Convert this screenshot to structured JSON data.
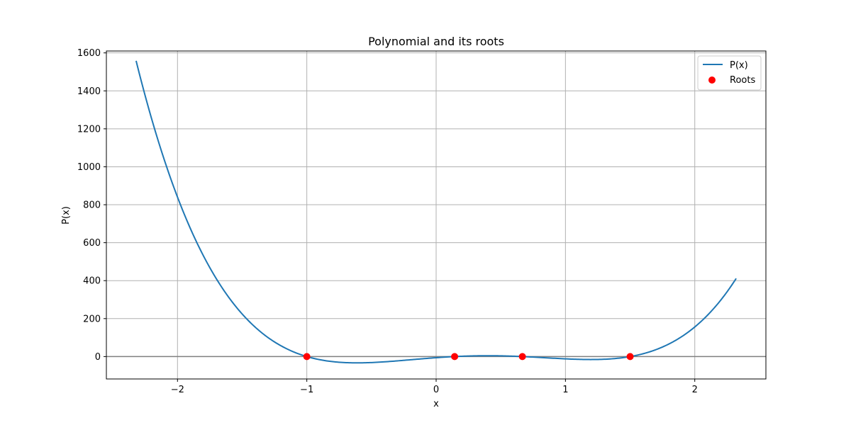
{
  "chart_data": {
    "type": "line",
    "title": "Polynomial and its roots",
    "xlabel": "x",
    "ylabel": "P(x)",
    "xlim": [
      -2.55,
      2.55
    ],
    "ylim": [
      -118,
      1610
    ],
    "xticks": [
      -2,
      -1,
      0,
      1,
      2
    ],
    "xtick_labels": [
      "−2",
      "−1",
      "0",
      "1",
      "2"
    ],
    "yticks": [
      0,
      200,
      400,
      600,
      800,
      1000,
      1200,
      1400,
      1600
    ],
    "ytick_labels": [
      "0",
      "200",
      "400",
      "600",
      "800",
      "1000",
      "1200",
      "1400",
      "1600"
    ],
    "grid": true,
    "legend_position": "top-right",
    "series": [
      {
        "name": "P(x)",
        "kind": "line",
        "color": "#1f77b4",
        "polynomial_roots": [
          -1,
          0.143,
          0.667,
          1.5
        ],
        "leading_coefficient": 42,
        "x_range": [
          -2.32,
          2.32
        ]
      },
      {
        "name": "Roots",
        "kind": "scatter",
        "color": "#ff0000",
        "x": [
          -1,
          0.143,
          0.667,
          1.5
        ],
        "y": [
          0,
          0,
          0,
          0
        ]
      }
    ],
    "reference_line": {
      "y": 0,
      "color": "#808080"
    }
  }
}
